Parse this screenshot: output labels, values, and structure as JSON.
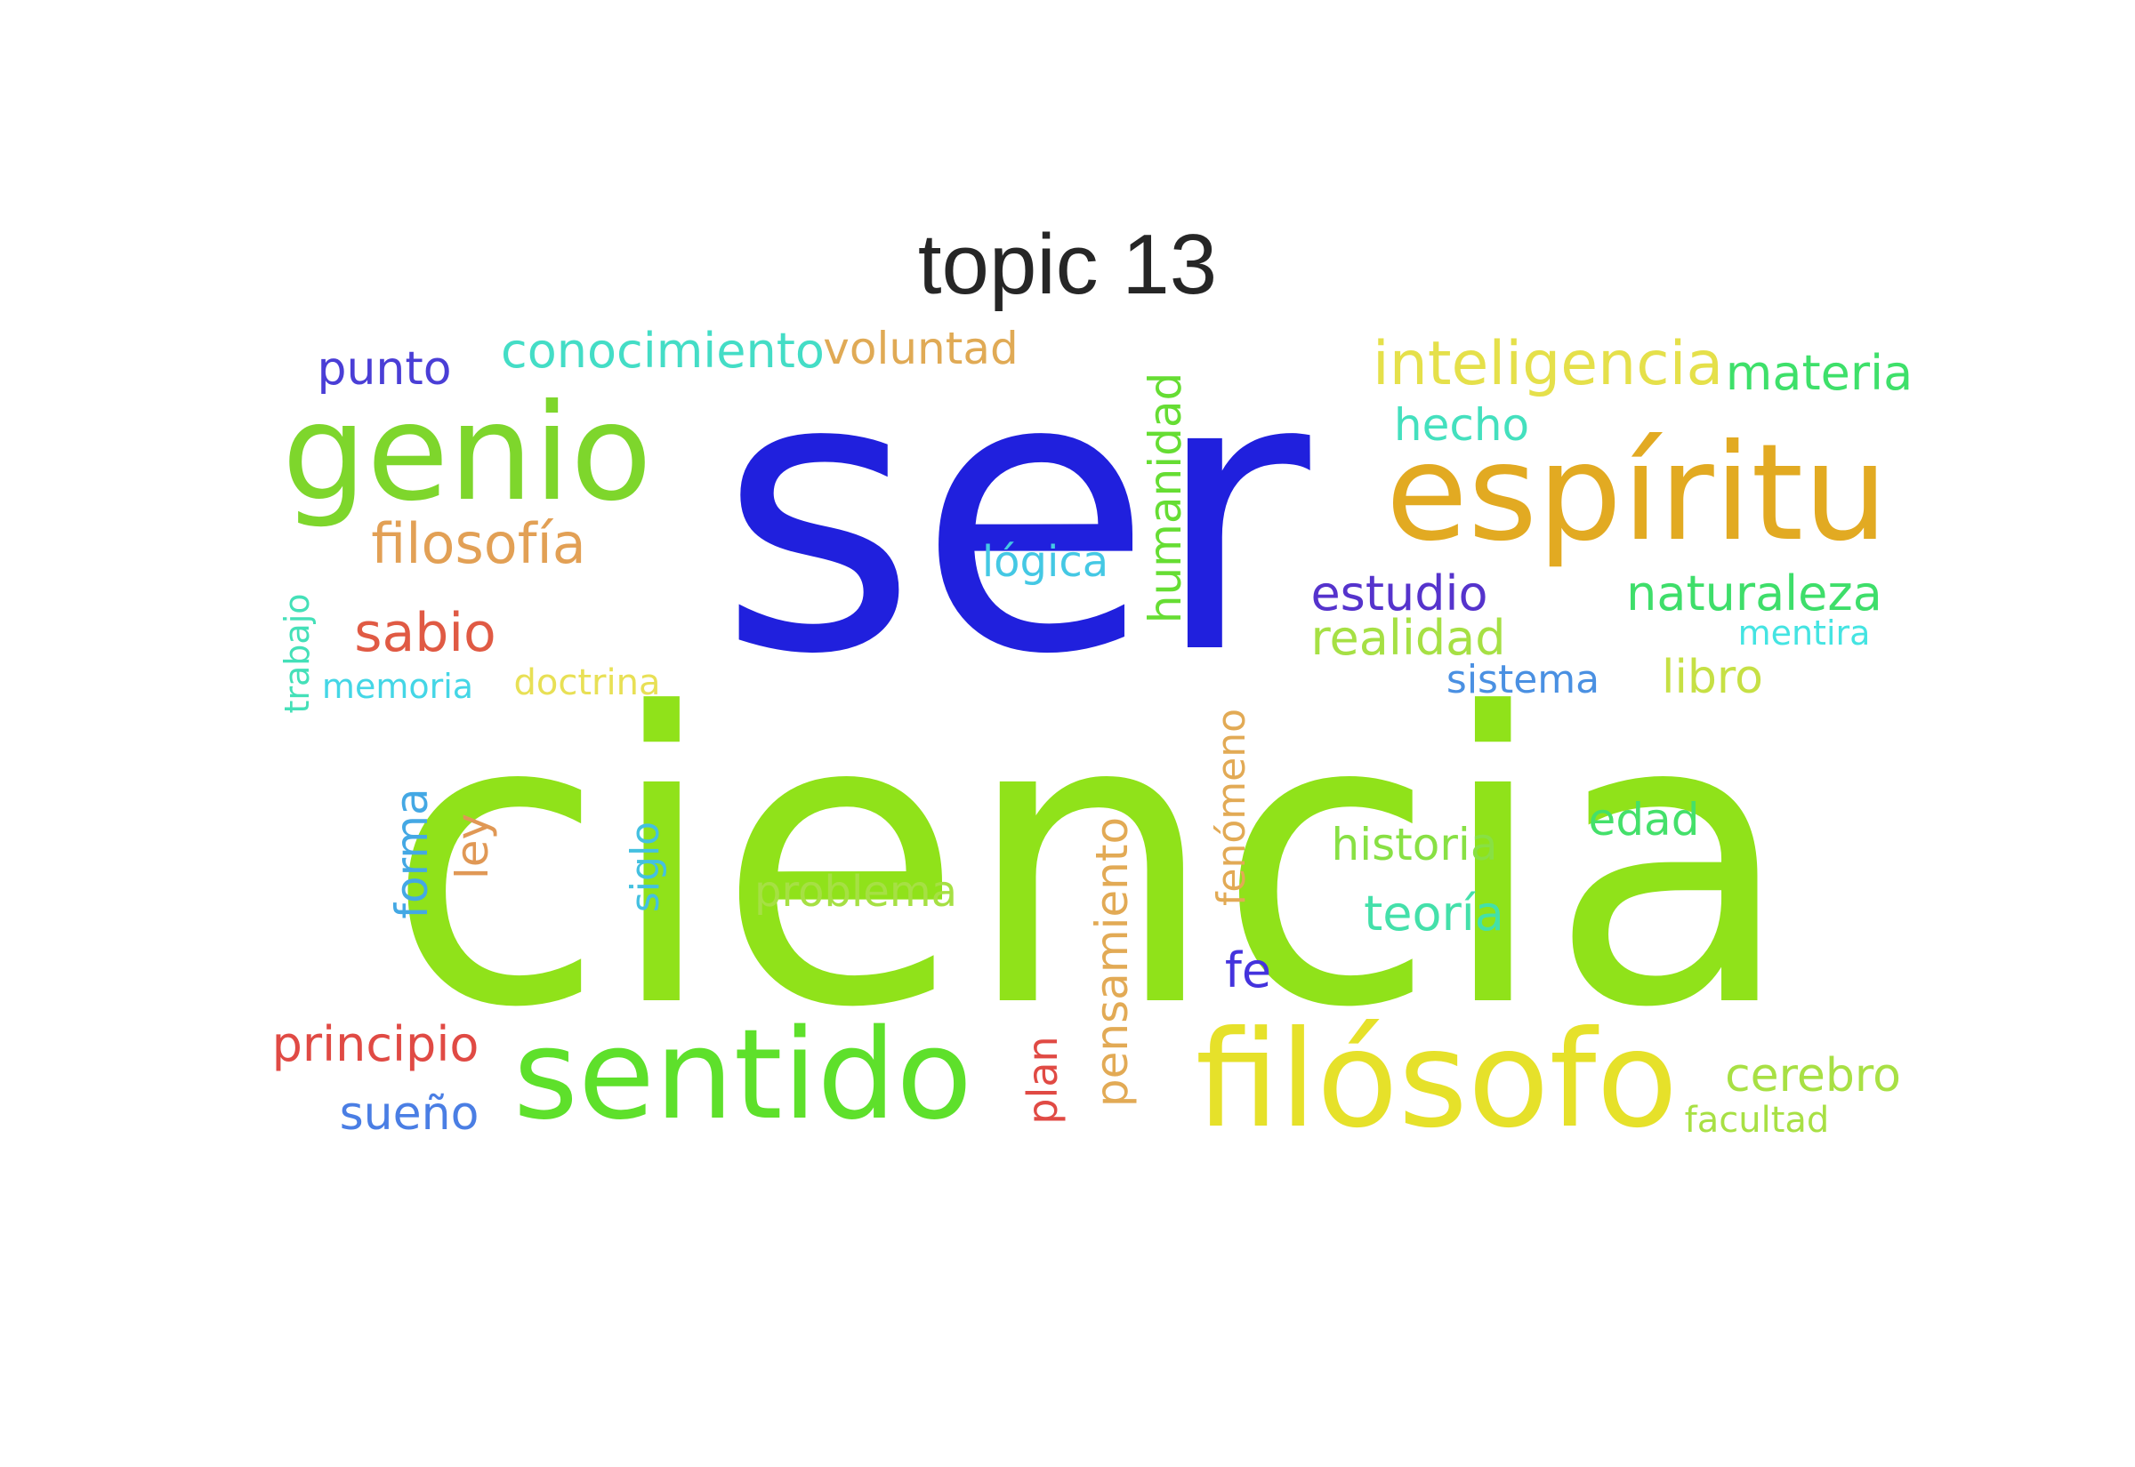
{
  "title": "topic 13",
  "words": [
    {
      "text": "ser",
      "color": "#2020dd",
      "rotated": false
    },
    {
      "text": "ciencia",
      "color": "#90e21a",
      "rotated": false
    },
    {
      "text": "espíritu",
      "color": "#e2aa22",
      "rotated": false
    },
    {
      "text": "genio",
      "color": "#7ed62c",
      "rotated": false
    },
    {
      "text": "filósofo",
      "color": "#e6e12a",
      "rotated": false
    },
    {
      "text": "sentido",
      "color": "#5ee02b",
      "rotated": false
    },
    {
      "text": "inteligencia",
      "color": "#e5e04a",
      "rotated": false
    },
    {
      "text": "conocimiento",
      "color": "#44ddc6",
      "rotated": false
    },
    {
      "text": "voluntad",
      "color": "#e0aa55",
      "rotated": false
    },
    {
      "text": "punto",
      "color": "#4a3ed6",
      "rotated": false
    },
    {
      "text": "materia",
      "color": "#3ee06a",
      "rotated": false
    },
    {
      "text": "hecho",
      "color": "#44e0be",
      "rotated": false
    },
    {
      "text": "filosofía",
      "color": "#e2a055",
      "rotated": false
    },
    {
      "text": "lógica",
      "color": "#44c8e4",
      "rotated": false
    },
    {
      "text": "humanidad",
      "color": "#66dd33",
      "rotated": true
    },
    {
      "text": "estudio",
      "color": "#5533cc",
      "rotated": false
    },
    {
      "text": "naturaleza",
      "color": "#3ede6a",
      "rotated": false
    },
    {
      "text": "sabio",
      "color": "#e05a44",
      "rotated": false
    },
    {
      "text": "realidad",
      "color": "#a6e044",
      "rotated": false
    },
    {
      "text": "mentira",
      "color": "#44e4e2",
      "rotated": false
    },
    {
      "text": "trabajo",
      "color": "#44e0b8",
      "rotated": true
    },
    {
      "text": "memoria",
      "color": "#44d6e6",
      "rotated": false
    },
    {
      "text": "doctrina",
      "color": "#e8e055",
      "rotated": false
    },
    {
      "text": "sistema",
      "color": "#4a90e2",
      "rotated": false
    },
    {
      "text": "libro",
      "color": "#c6e044",
      "rotated": false
    },
    {
      "text": "fenómeno",
      "color": "#e2aa55",
      "rotated": true
    },
    {
      "text": "forma",
      "color": "#44a8e4",
      "rotated": true
    },
    {
      "text": "ley",
      "color": "#e09855",
      "rotated": true
    },
    {
      "text": "siglo",
      "color": "#44c0e0",
      "rotated": true
    },
    {
      "text": "problema",
      "color": "#a6e044",
      "rotated": false
    },
    {
      "text": "historia",
      "color": "#88e044",
      "rotated": false
    },
    {
      "text": "edad",
      "color": "#44e06a",
      "rotated": false
    },
    {
      "text": "teoría",
      "color": "#44e0aa",
      "rotated": false
    },
    {
      "text": "pensamiento",
      "color": "#e2aa55",
      "rotated": true
    },
    {
      "text": "fe",
      "color": "#4433dd",
      "rotated": false
    },
    {
      "text": "principio",
      "color": "#e04a44",
      "rotated": false
    },
    {
      "text": "plan",
      "color": "#e04a44",
      "rotated": true
    },
    {
      "text": "cerebro",
      "color": "#a8e044",
      "rotated": false
    },
    {
      "text": "sueño",
      "color": "#4a7ee4",
      "rotated": false
    },
    {
      "text": "facultad",
      "color": "#a8e044",
      "rotated": false
    }
  ]
}
